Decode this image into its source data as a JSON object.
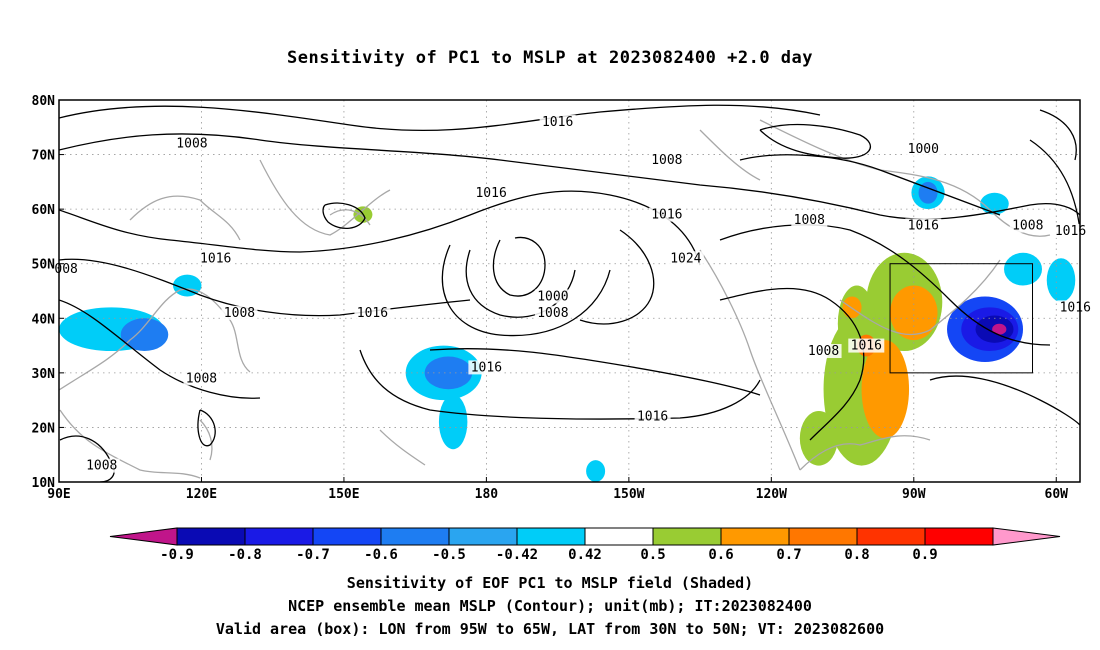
{
  "title": "Sensitivity of PC1 to MSLP at 2023082400 +2.0 day",
  "map": {
    "lon_range": [
      90,
      305
    ],
    "lat_range": [
      10,
      80
    ],
    "lon_labels": [
      "90E",
      "120E",
      "150E",
      "180",
      "150W",
      "120W",
      "90W",
      "60W"
    ],
    "lat_labels": [
      "80N",
      "70N",
      "60N",
      "50N",
      "40N",
      "30N",
      "20N",
      "10N"
    ],
    "grid": "dotted",
    "valid_box": {
      "lon_west": 265,
      "lon_east": 295,
      "lat_south": 30,
      "lat_north": 50
    }
  },
  "contour_labels": [
    {
      "text": "1008",
      "lon": 118,
      "lat": 72
    },
    {
      "text": "1016",
      "lon": 181,
      "lat": 63
    },
    {
      "text": "1016",
      "lon": 195,
      "lat": 76
    },
    {
      "text": "1008",
      "lon": 218,
      "lat": 69
    },
    {
      "text": "1000",
      "lon": 272,
      "lon_note": "",
      "lat": 71
    },
    {
      "text": "1016",
      "lon": 218,
      "lat": 59
    },
    {
      "text": "1008",
      "lon": 248,
      "lat": 58
    },
    {
      "text": "1016",
      "lon": 272,
      "lat": 57
    },
    {
      "text": "1008",
      "lon": 294,
      "lat": 57
    },
    {
      "text": "1016",
      "lon": 303,
      "lat": 56
    },
    {
      "text": "1016",
      "lon": 123,
      "lat": 51
    },
    {
      "text": "008",
      "lon": 91.5,
      "lat": 49
    },
    {
      "text": "1024",
      "lon": 222,
      "lat": 51
    },
    {
      "text": "1000",
      "lon": 194,
      "lat": 44
    },
    {
      "text": "1008",
      "lon": 194,
      "lat": 41
    },
    {
      "text": "1008",
      "lon": 128,
      "lat": 41
    },
    {
      "text": "1016",
      "lon": 156,
      "lat": 41
    },
    {
      "text": "1016",
      "lon": 304,
      "lat": 42
    },
    {
      "text": "1016",
      "lon": 260,
      "lat": 35
    },
    {
      "text": "1008",
      "lon": 251,
      "lat": 34
    },
    {
      "text": "1016",
      "lon": 180,
      "lat": 31
    },
    {
      "text": "1008",
      "lon": 120,
      "lat": 29
    },
    {
      "text": "1016",
      "lon": 215,
      "lat": 22
    },
    {
      "text": "1008",
      "lon": 99,
      "lat": 13
    }
  ],
  "shaded_regions": [
    {
      "level": 0.5,
      "lon": 259,
      "lat": 27,
      "rx": 8,
      "ry": 14
    },
    {
      "level": 0.5,
      "lon": 268,
      "lat": 43,
      "rx": 8,
      "ry": 9
    },
    {
      "level": 0.5,
      "lon": 258,
      "lat": 39,
      "rx": 4,
      "ry": 7
    },
    {
      "level": 0.5,
      "lon": 250,
      "lat": 18,
      "rx": 4,
      "ry": 5
    },
    {
      "level": 0.5,
      "lon": 154,
      "lat": 59,
      "rx": 2,
      "ry": 1.5
    },
    {
      "level": 0.6,
      "lon": 264,
      "lat": 27,
      "rx": 5,
      "ry": 9
    },
    {
      "level": 0.6,
      "lon": 270,
      "lat": 41,
      "rx": 5,
      "ry": 5
    },
    {
      "level": 0.6,
      "lon": 257,
      "lat": 42,
      "rx": 2,
      "ry": 2
    },
    {
      "level": 0.7,
      "lon": 260,
      "lat": 35,
      "rx": 2,
      "ry": 2
    },
    {
      "level": -0.42,
      "lon": 171,
      "lat": 30,
      "rx": 8,
      "ry": 5
    },
    {
      "level": -0.42,
      "lon": 173,
      "lat": 21,
      "rx": 3,
      "ry": 5
    },
    {
      "level": -0.42,
      "lon": 101,
      "lat": 38,
      "rx": 11,
      "ry": 4
    },
    {
      "level": -0.42,
      "lon": 117,
      "lat": 46,
      "rx": 3,
      "ry": 2
    },
    {
      "level": -0.42,
      "lon": 273,
      "lat": 63,
      "rx": 3.5,
      "ry": 3
    },
    {
      "level": -0.42,
      "lon": 293,
      "lat": 49,
      "rx": 4,
      "ry": 3
    },
    {
      "level": -0.42,
      "lon": 301,
      "lat": 47,
      "rx": 3,
      "ry": 4
    },
    {
      "level": -0.42,
      "lon": 287,
      "lat": 61,
      "rx": 3,
      "ry": 2
    },
    {
      "level": -0.42,
      "lon": 203,
      "lat": 12,
      "rx": 2,
      "ry": 2
    },
    {
      "level": -0.5,
      "lon": 172,
      "lat": 30,
      "rx": 5,
      "ry": 3
    },
    {
      "level": -0.5,
      "lon": 108,
      "lat": 37,
      "rx": 5,
      "ry": 3
    },
    {
      "level": -0.5,
      "lon": 273,
      "lat": 63,
      "rx": 2,
      "ry": 2
    },
    {
      "level": -0.6,
      "lon": 285,
      "lat": 38,
      "rx": 8,
      "ry": 6
    },
    {
      "level": -0.7,
      "lon": 286,
      "lat": 38,
      "rx": 6,
      "ry": 4
    },
    {
      "level": -0.8,
      "lon": 287,
      "lat": 38,
      "rx": 4,
      "ry": 2.5
    },
    {
      "level": -0.9,
      "lon": 288,
      "lat": 38,
      "rx": 1.5,
      "ry": 1
    }
  ],
  "colorbar": {
    "labels": [
      "-0.9",
      "-0.8",
      "-0.7",
      "-0.6",
      "-0.5",
      "-0.42",
      "0.42",
      "0.5",
      "0.6",
      "0.7",
      "0.8",
      "0.9"
    ],
    "colors": [
      "#c0158a",
      "#0a0ab4",
      "#1a1ae6",
      "#1446f5",
      "#1e7df2",
      "#2aa5f0",
      "#00cdf8",
      "#ffffff",
      "#99cc33",
      "#ff9900",
      "#ff7700",
      "#ff3300",
      "#ff0000",
      "#ff99cc"
    ],
    "level_colors": {
      "-0.9": "#c0158a",
      "-0.8": "#0a0ab4",
      "-0.7": "#1a1ae6",
      "-0.6": "#1446f5",
      "-0.5": "#1e7df2",
      "-0.42": "#00cdf8",
      "0.5": "#99cc33",
      "0.6": "#ff9900",
      "0.7": "#ff7700",
      "0.8": "#ff3300",
      "0.9": "#ff0000"
    }
  },
  "captions": [
    "Sensitivity of EOF PC1 to MSLP field (Shaded)",
    "NCEP ensemble mean MSLP (Contour); unit(mb); IT:2023082400",
    "Valid area (box): LON from 95W to 65W, LAT from 30N to 50N; VT: 2023082600"
  ]
}
